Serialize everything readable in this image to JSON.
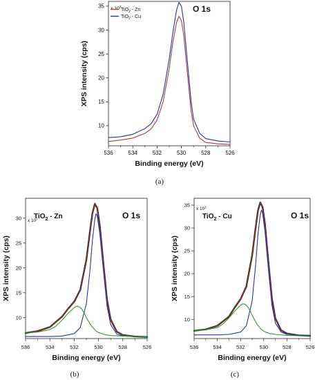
{
  "panel_labels": [
    "(a)",
    "(b)",
    "(c)"
  ],
  "chart_data": [
    {
      "id": "a",
      "type": "line",
      "title": "O 1s",
      "xlabel": "Binding energy (eV)",
      "ylabel": "XPS intensity (cps)",
      "y_multiplier": "x 10",
      "y_multiplier_exp": "3",
      "xlim": [
        536,
        526
      ],
      "ylim": [
        5.8,
        36
      ],
      "xticks": [
        "536",
        "534",
        "532",
        "530",
        "528",
        "526"
      ],
      "yticks": [
        {
          "v": 10,
          "label": "10"
        },
        {
          "v": 15,
          "label": "15"
        },
        {
          "v": 20,
          "label": "20"
        },
        {
          "v": 25,
          "label": "25"
        },
        {
          "v": 30,
          "label": "30"
        },
        {
          "v": 35,
          "label": "35"
        }
      ],
      "legend": {
        "position": "top-left",
        "entries": [
          {
            "base": "TiO",
            "sub": "2",
            "rest": " - Zn",
            "color": "#b33a2a"
          },
          {
            "base": "TiO",
            "sub": "2",
            "rest": " - Cu",
            "color": "#2233bb"
          }
        ]
      },
      "series": [
        {
          "name": "TiO2 - Zn",
          "color": "#b33a2a",
          "x": [
            536,
            535,
            534,
            533,
            532.5,
            532,
            531.5,
            531,
            530.7,
            530.4,
            530.2,
            530,
            529.8,
            529.5,
            529.2,
            529,
            528.5,
            528,
            527,
            526
          ],
          "y": [
            6.7,
            7.0,
            7.4,
            8.4,
            9.3,
            11.2,
            15.0,
            22.0,
            27.5,
            31.6,
            32.9,
            32.0,
            28.8,
            20.8,
            13.0,
            10.0,
            7.4,
            6.5,
            6.2,
            6.1
          ]
        },
        {
          "name": "TiO2 - Cu",
          "color": "#2233bb",
          "x": [
            536,
            535,
            534,
            533,
            532.5,
            532,
            531.5,
            531,
            530.7,
            530.4,
            530.2,
            530,
            529.8,
            529.5,
            529.2,
            529,
            528.5,
            528,
            527,
            526
          ],
          "y": [
            7.5,
            7.7,
            8.2,
            9.4,
            10.4,
            12.4,
            16.6,
            24.0,
            29.5,
            34.2,
            35.8,
            35.0,
            31.6,
            23.2,
            15.0,
            11.4,
            8.4,
            7.3,
            6.8,
            6.6
          ]
        }
      ]
    },
    {
      "id": "b",
      "type": "line",
      "title": "O 1s",
      "sample": {
        "base": "TiO",
        "sub": "2",
        "rest": " - Zn"
      },
      "xlabel": "Binding energy (eV)",
      "ylabel": "XPS intensity (cps)",
      "y_multiplier": "x 10",
      "y_multiplier_exp": "3",
      "xlim": [
        536,
        526
      ],
      "ylim": [
        5.8,
        34
      ],
      "xticks": [
        "536",
        "534",
        "532",
        "530",
        "528",
        "526"
      ],
      "yticks": [
        {
          "v": 10,
          "label": "10"
        },
        {
          "v": 15,
          "label": "15"
        },
        {
          "v": 20,
          "label": "20"
        },
        {
          "v": 25,
          "label": "25"
        },
        {
          "v": 30,
          "label": "30"
        }
      ],
      "series": [
        {
          "name": "",
          "color": "#2a2a2a",
          "style": "data",
          "x": [
            536,
            535,
            534,
            533,
            532.5,
            532,
            531.5,
            531,
            530.7,
            530.5,
            530.3,
            530.1,
            529.9,
            529.6,
            529.3,
            529,
            528.5,
            528,
            527,
            526
          ],
          "y": [
            6.9,
            7.3,
            8.1,
            10.2,
            11.8,
            13.2,
            15.6,
            21.6,
            27.4,
            31.0,
            32.9,
            32.0,
            28.6,
            21.0,
            13.6,
            9.6,
            7.2,
            6.5,
            6.2,
            6.1
          ]
        },
        {
          "name": "",
          "color": "#b33a2a",
          "style": "fit",
          "x": [
            536,
            535,
            534,
            533,
            532.5,
            532,
            531.5,
            531,
            530.7,
            530.5,
            530.3,
            530.1,
            529.9,
            529.6,
            529.3,
            529,
            528.5,
            528,
            527,
            526
          ],
          "y": [
            6.9,
            7.3,
            8.1,
            10.2,
            11.8,
            13.2,
            15.6,
            21.6,
            27.4,
            31.0,
            32.9,
            32.0,
            28.6,
            21.0,
            13.6,
            9.6,
            7.2,
            6.5,
            6.2,
            6.1
          ]
        },
        {
          "name": "",
          "color": "#2233bb",
          "style": "component",
          "x": [
            536,
            534,
            533,
            532,
            531.5,
            531,
            530.7,
            530.5,
            530.3,
            530.2,
            530.1,
            529.9,
            529.6,
            529.3,
            529,
            528.5,
            528,
            527,
            526
          ],
          "y": [
            6.2,
            6.2,
            6.3,
            6.8,
            8.0,
            12.8,
            19.6,
            25.6,
            29.8,
            30.9,
            30.4,
            27.0,
            19.6,
            12.4,
            8.6,
            6.7,
            6.3,
            6.2,
            6.1
          ]
        },
        {
          "name": "",
          "color": "#2a9a2a",
          "style": "component",
          "x": [
            536,
            535,
            534,
            533.5,
            533,
            532.5,
            532,
            531.8,
            531.6,
            531.4,
            531.2,
            531,
            530.6,
            530.2,
            530,
            529.5,
            529,
            528,
            527,
            526
          ],
          "y": [
            6.9,
            7.1,
            7.6,
            8.3,
            9.5,
            10.9,
            12.0,
            12.3,
            12.2,
            11.8,
            11.0,
            10.0,
            8.4,
            7.3,
            7.0,
            6.6,
            6.4,
            6.3,
            6.2,
            6.1
          ]
        }
      ]
    },
    {
      "id": "c",
      "type": "line",
      "title": "O 1s",
      "sample": {
        "base": "TiO",
        "sub": "2",
        "rest": " - Cu"
      },
      "xlabel": "Binding energy (eV)",
      "ylabel": "XPS intensity (cps)",
      "y_multiplier": "x 10",
      "y_multiplier_exp": "3",
      "xlim": [
        536,
        526
      ],
      "ylim": [
        5.8,
        36.5
      ],
      "xticks": [
        "536",
        "534",
        "532",
        "530",
        "528",
        "526"
      ],
      "yticks": [
        {
          "v": 10,
          "label": "10"
        },
        {
          "v": 15,
          "label": "15"
        },
        {
          "v": 20,
          "label": "20"
        },
        {
          "v": 25,
          "label": "25"
        },
        {
          "v": 30,
          "label": "30"
        },
        {
          "v": 35,
          "label": "35"
        }
      ],
      "series": [
        {
          "name": "",
          "color": "#2a2a2a",
          "style": "data",
          "x": [
            536,
            535,
            534,
            533,
            532.5,
            532,
            531.5,
            531,
            530.7,
            530.5,
            530.3,
            530.1,
            529.9,
            529.6,
            529.3,
            529,
            528.5,
            528,
            527,
            526
          ],
          "y": [
            7.5,
            7.8,
            8.6,
            10.6,
            12.6,
            14.4,
            17.2,
            24.0,
            30.0,
            33.8,
            35.6,
            34.6,
            31.0,
            22.6,
            14.6,
            10.2,
            7.6,
            6.9,
            6.5,
            6.4
          ]
        },
        {
          "name": "",
          "color": "#b33a2a",
          "style": "fit",
          "x": [
            536,
            535,
            534,
            533,
            532.5,
            532,
            531.5,
            531,
            530.7,
            530.5,
            530.3,
            530.1,
            529.9,
            529.6,
            529.3,
            529,
            528.5,
            528,
            527,
            526
          ],
          "y": [
            7.5,
            7.8,
            8.6,
            10.6,
            12.6,
            14.4,
            17.2,
            24.0,
            30.0,
            33.8,
            35.6,
            34.6,
            31.0,
            22.6,
            14.6,
            10.2,
            7.6,
            6.9,
            6.5,
            6.4
          ]
        },
        {
          "name": "",
          "color": "#2233bb",
          "style": "component",
          "x": [
            536,
            534,
            533,
            532,
            531.5,
            531,
            530.7,
            530.5,
            530.3,
            530.2,
            530.1,
            529.9,
            529.6,
            529.3,
            529,
            528.5,
            528,
            527,
            526
          ],
          "y": [
            6.6,
            6.6,
            6.7,
            7.2,
            8.6,
            14.0,
            21.8,
            28.6,
            33.0,
            33.9,
            33.3,
            29.4,
            21.0,
            13.2,
            9.2,
            7.2,
            6.7,
            6.5,
            6.4
          ]
        },
        {
          "name": "",
          "color": "#2a9a2a",
          "style": "component",
          "x": [
            536,
            535,
            534,
            533.5,
            533,
            532.5,
            532,
            531.8,
            531.6,
            531.4,
            531.2,
            531,
            530.6,
            530.2,
            530,
            529.5,
            529,
            528,
            527,
            526
          ],
          "y": [
            7.5,
            7.7,
            8.2,
            9.0,
            10.3,
            11.8,
            13.1,
            13.4,
            13.3,
            12.8,
            12.0,
            10.9,
            9.0,
            7.8,
            7.4,
            6.9,
            6.7,
            6.5,
            6.4,
            6.4
          ]
        }
      ]
    }
  ]
}
